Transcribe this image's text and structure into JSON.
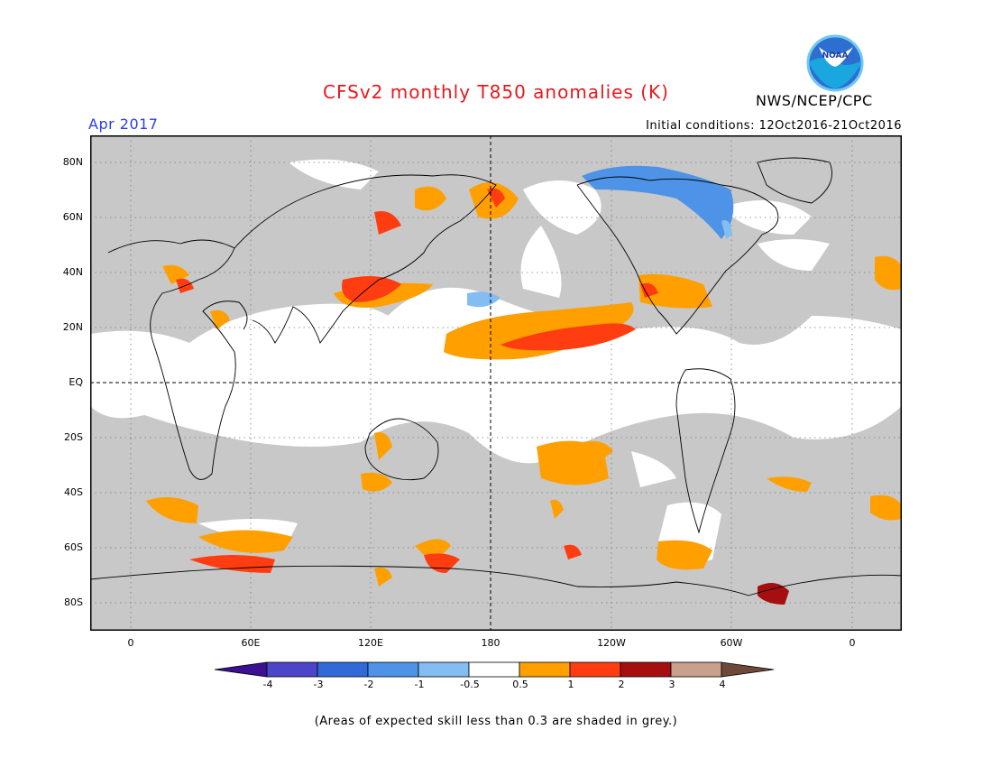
{
  "header": {
    "title": "CFSv2 monthly T850 anomalies (K)",
    "period": "Apr 2017",
    "initial_conditions": "Initial conditions: 12Oct2016-21Oct2016",
    "agency": "NWS/NCEP/CPC",
    "logo_text": "NOAA"
  },
  "axes": {
    "lat_labels": [
      "80N",
      "60N",
      "40N",
      "20N",
      "EQ",
      "20S",
      "40S",
      "60S",
      "80S"
    ],
    "lon_labels": [
      "0",
      "60E",
      "120E",
      "180",
      "120W",
      "60W",
      "0"
    ]
  },
  "legend": {
    "tick_labels": [
      "-4",
      "-3",
      "-2",
      "-1",
      "-0.5",
      "0.5",
      "1",
      "2",
      "3",
      "4"
    ],
    "colors": [
      "#3d0f92",
      "#4c44c9",
      "#2f6ad8",
      "#4e93e8",
      "#84bdf2",
      "#ffffff",
      "#ff9f00",
      "#ff3d10",
      "#a50f0f",
      "#c8a08c",
      "#6e4838"
    ]
  },
  "colors": {
    "title": "#e8181c",
    "period": "#2a3cf0",
    "skill_mask_grey": "#c8c8c8"
  },
  "caption": "(Areas of expected skill less than 0.3 are shaded in grey.)"
}
